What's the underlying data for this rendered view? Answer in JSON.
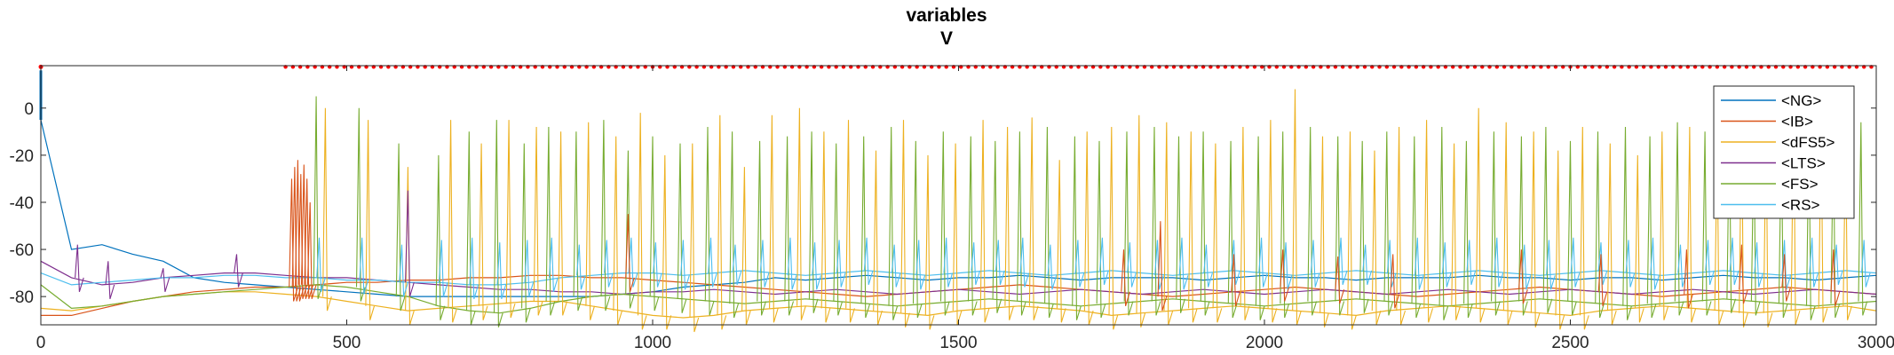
{
  "chart_data": {
    "type": "line",
    "title": "variables",
    "subtitle": "V",
    "xlabel": "",
    "ylabel": "",
    "xlim": [
      0,
      3000
    ],
    "ylim": [
      -92,
      18
    ],
    "xticks": [
      0,
      500,
      1000,
      1500,
      2000,
      2500,
      3000
    ],
    "yticks": [
      0,
      -20,
      -40,
      -60,
      -80
    ],
    "yticklabels": [
      "0",
      "-20",
      "-40",
      "-60",
      "-80"
    ],
    "legend_placement": "top-right",
    "grid": false,
    "series": [
      {
        "name": "<NG>",
        "color": "#0072BD",
        "values": [
          -5,
          -60,
          -58,
          -62,
          -65,
          -72,
          -74,
          -75,
          -76,
          -77,
          -78,
          -79,
          -80,
          -80,
          -80,
          -80,
          -80,
          -80,
          -80,
          -79,
          -78,
          -76,
          -75,
          -74,
          -72,
          -73,
          -72,
          -71,
          -72,
          -73,
          -72,
          -72,
          -71,
          -72,
          -73,
          -72,
          -72,
          -72,
          -73,
          -72,
          -71,
          -72,
          -72,
          -73,
          -72,
          -72,
          -72,
          -71,
          -72,
          -72,
          -73,
          -72,
          -72,
          -73,
          -72,
          -71,
          -72,
          -72,
          -73,
          -72,
          -71
        ]
      },
      {
        "name": "<IB>",
        "color": "#D95319",
        "values": [
          -88,
          -88,
          -85,
          -82,
          -80,
          -78,
          -77,
          -76,
          -76,
          -75,
          -74,
          -74,
          -73,
          -73,
          -72,
          -72,
          -71,
          -71,
          -72,
          -72,
          -73,
          -74,
          -75,
          -76,
          -77,
          -78,
          -79,
          -80,
          -79,
          -78,
          -77,
          -76,
          -75,
          -76,
          -77,
          -78,
          -79,
          -80,
          -79,
          -78,
          -77,
          -76,
          -77,
          -78,
          -79,
          -80,
          -79,
          -78,
          -77,
          -76,
          -77,
          -78,
          -79,
          -80,
          -79,
          -78,
          -77,
          -76,
          -77,
          -78,
          -79
        ]
      },
      {
        "name": "<dFS5>",
        "color": "#EDB120",
        "values": [
          -85,
          -86,
          -84,
          -82,
          -80,
          -79,
          -78,
          -78,
          -79,
          -80,
          -82,
          -84,
          -86,
          -85,
          -84,
          -83,
          -82,
          -82,
          -84,
          -86,
          -88,
          -89,
          -88,
          -86,
          -85,
          -84,
          -85,
          -86,
          -87,
          -88,
          -86,
          -85,
          -84,
          -85,
          -86,
          -88,
          -87,
          -86,
          -85,
          -84,
          -85,
          -86,
          -87,
          -88,
          -86,
          -85,
          -84,
          -85,
          -86,
          -87,
          -88,
          -86,
          -85,
          -84,
          -85,
          -86,
          -87,
          -86,
          -85,
          -84,
          -86
        ]
      },
      {
        "name": "<LTS>",
        "color": "#7E2F8E",
        "values": [
          -65,
          -72,
          -75,
          -74,
          -72,
          -71,
          -70,
          -70,
          -71,
          -72,
          -72,
          -73,
          -74,
          -75,
          -76,
          -77,
          -77,
          -78,
          -78,
          -79,
          -78,
          -78,
          -77,
          -78,
          -79,
          -78,
          -77,
          -78,
          -79,
          -78,
          -77,
          -78,
          -79,
          -78,
          -77,
          -78,
          -79,
          -78,
          -77,
          -78,
          -79,
          -78,
          -77,
          -78,
          -79,
          -78,
          -77,
          -78,
          -79,
          -78,
          -77,
          -78,
          -79,
          -78,
          -77,
          -78,
          -79,
          -78,
          -77,
          -78,
          -79
        ]
      },
      {
        "name": "<FS>",
        "color": "#77AC30",
        "values": [
          -75,
          -85,
          -84,
          -82,
          -80,
          -79,
          -78,
          -77,
          -76,
          -75,
          -76,
          -78,
          -80,
          -84,
          -86,
          -87,
          -85,
          -82,
          -80,
          -79,
          -80,
          -81,
          -82,
          -83,
          -82,
          -81,
          -82,
          -83,
          -84,
          -83,
          -82,
          -81,
          -82,
          -83,
          -84,
          -83,
          -82,
          -81,
          -82,
          -83,
          -84,
          -83,
          -82,
          -81,
          -82,
          -83,
          -84,
          -83,
          -82,
          -81,
          -82,
          -83,
          -84,
          -83,
          -82,
          -81,
          -82,
          -83,
          -84,
          -83,
          -82
        ]
      },
      {
        "name": "<RS>",
        "color": "#4DBEEE",
        "values": [
          -70,
          -75,
          -74,
          -73,
          -72,
          -72,
          -71,
          -71,
          -72,
          -72,
          -73,
          -73,
          -74,
          -74,
          -75,
          -75,
          -74,
          -72,
          -71,
          -70,
          -70,
          -71,
          -70,
          -69,
          -70,
          -71,
          -70,
          -69,
          -70,
          -71,
          -70,
          -69,
          -70,
          -71,
          -70,
          -69,
          -70,
          -71,
          -70,
          -69,
          -70,
          -71,
          -70,
          -69,
          -70,
          -71,
          -70,
          -69,
          -70,
          -71,
          -70,
          -69,
          -70,
          -71,
          -70,
          -69,
          -70,
          -71,
          -70,
          -69,
          -70
        ]
      }
    ],
    "x_step": 50,
    "spikes": [
      {
        "series": "<FS>",
        "times": [
          450,
          520,
          585,
          650,
          700,
          745,
          790,
          830,
          875,
          920,
          960,
          1000,
          1045,
          1090,
          1130,
          1175,
          1220,
          1260,
          1300,
          1345,
          1390,
          1430,
          1475,
          1520,
          1560,
          1600,
          1645,
          1690,
          1730,
          1775,
          1820,
          1860,
          1900,
          1945,
          1990,
          2030,
          2075,
          2120,
          2160,
          2200,
          2245,
          2290,
          2330,
          2375,
          2420,
          2460,
          2500,
          2545,
          2590,
          2630,
          2675,
          2720,
          2760,
          2800,
          2845,
          2890,
          2930,
          2975
        ],
        "peaks": [
          5,
          0,
          -15,
          -20,
          -10,
          -5,
          -15,
          -8,
          -10,
          -5,
          -18,
          -12,
          -15,
          -8,
          -10,
          -14,
          -12,
          -10,
          -15,
          -12,
          -8,
          -14,
          -10,
          -12,
          -14,
          -10,
          -8,
          -12,
          -14,
          -10,
          -8,
          -12,
          -10,
          -14,
          -12,
          -10,
          -8,
          -12,
          -14,
          -10,
          -12,
          -8,
          -14,
          -10,
          -12,
          -8,
          -14,
          -10,
          -8,
          -12,
          -6,
          -10,
          -8,
          -12,
          -10,
          -8,
          -10,
          -6
        ]
      },
      {
        "series": "<dFS5>",
        "times": [
          465,
          535,
          600,
          670,
          720,
          765,
          810,
          850,
          895,
          940,
          980,
          1020,
          1065,
          1110,
          1150,
          1195,
          1240,
          1280,
          1320,
          1365,
          1410,
          1450,
          1495,
          1540,
          1580,
          1620,
          1665,
          1710,
          1750,
          1795,
          1840,
          1880,
          1920,
          1965,
          2010,
          2050,
          2095,
          2140,
          2180,
          2220,
          2265,
          2310,
          2350,
          2395,
          2440,
          2480,
          2520,
          2565,
          2610,
          2650,
          2695,
          2740,
          2780,
          2820,
          2865,
          2910,
          2950
        ],
        "peaks": [
          0,
          -5,
          -25,
          -5,
          -15,
          -5,
          -8,
          -10,
          -6,
          -12,
          -2,
          -20,
          -15,
          -3,
          -25,
          -3,
          0,
          -10,
          -5,
          -18,
          -5,
          -20,
          -15,
          -5,
          -8,
          -4,
          -22,
          -10,
          -8,
          -3,
          -6,
          -10,
          -15,
          -8,
          -5,
          8,
          -12,
          -10,
          -18,
          -8,
          -5,
          -15,
          0,
          -6,
          -10,
          -18,
          -8,
          -15,
          -20,
          -10,
          -8,
          -14,
          0,
          -6,
          2,
          -5,
          -12
        ]
      },
      {
        "series": "<RS>",
        "times": [
          455,
          525,
          590,
          655,
          705,
          750,
          795,
          835,
          880,
          925,
          965,
          1005,
          1050,
          1095,
          1135,
          1180,
          1225,
          1265,
          1305,
          1350,
          1395,
          1435,
          1480,
          1525,
          1565,
          1605,
          1650,
          1695,
          1735,
          1780,
          1825,
          1865,
          1905,
          1950,
          1995,
          2035,
          2080,
          2125,
          2165,
          2205,
          2250,
          2295,
          2335,
          2380,
          2425,
          2465,
          2505,
          2550,
          2595,
          2635,
          2680,
          2725,
          2765,
          2805,
          2850,
          2895,
          2935,
          2980
        ],
        "peaks": [
          -55,
          -55,
          -58,
          -56,
          -55,
          -57,
          -56,
          -55,
          -58,
          -56,
          -55,
          -57,
          -56,
          -55,
          -58,
          -56,
          -55,
          -57,
          -56,
          -55,
          -58,
          -56,
          -55,
          -57,
          -56,
          -55,
          -58,
          -56,
          -55,
          -57,
          -56,
          -55,
          -58,
          -56,
          -55,
          -57,
          -56,
          -55,
          -58,
          -56,
          -55,
          -57,
          -56,
          -55,
          -58,
          -56,
          -55,
          -57,
          -56,
          -55,
          -58,
          -56,
          -55,
          -57,
          -56,
          -55,
          -58,
          -56
        ]
      },
      {
        "series": "<IB>",
        "times": [
          410,
          415,
          420,
          425,
          430,
          435,
          440,
          960,
          1770,
          1830,
          1950,
          2030,
          2120,
          2210,
          2420,
          2550,
          2690,
          2780,
          2850,
          2930
        ],
        "peaks": [
          -30,
          -25,
          -22,
          -28,
          -24,
          -30,
          -40,
          -45,
          -60,
          -48,
          -62,
          -60,
          -63,
          -62,
          -60,
          -62,
          -60,
          -58,
          -62,
          -60
        ]
      },
      {
        "series": "<LTS>",
        "times": [
          60,
          110,
          200,
          320,
          600
        ],
        "peaks": [
          -58,
          -65,
          -68,
          -62,
          -35
        ]
      }
    ],
    "markers": {
      "color": "#FF0000",
      "y": 17.5,
      "times_start": 400,
      "times_end": 3000,
      "step": 12
    }
  }
}
